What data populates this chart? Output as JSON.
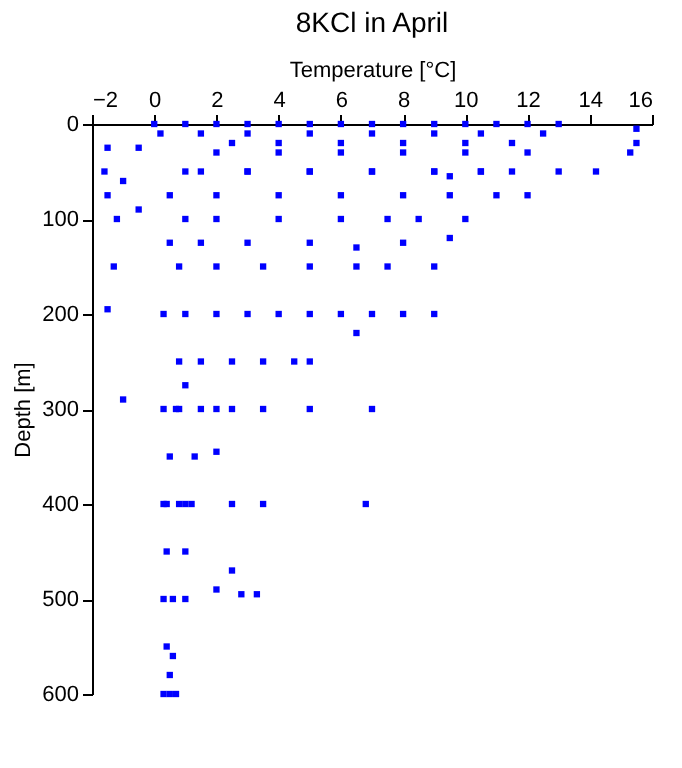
{
  "chart_data": {
    "type": "scatter",
    "title": "8KCl in April",
    "xlabel": "Temperature [°C]",
    "ylabel": "Depth [m]",
    "marker": "square",
    "grid": false,
    "xlim": [
      -2,
      16
    ],
    "xticks": [
      -2,
      0,
      2,
      4,
      6,
      8,
      10,
      12,
      14,
      16
    ],
    "ylim": [
      600,
      0
    ],
    "yticks": [
      0,
      100,
      200,
      300,
      400,
      500,
      600
    ],
    "x": [
      0,
      1,
      2,
      3,
      4,
      5,
      6,
      7,
      8,
      9,
      10,
      11,
      12,
      13,
      0.2,
      1.5,
      3,
      5,
      7,
      9,
      10.5,
      12.5,
      15.5,
      2.5,
      4,
      6,
      8,
      10,
      11.5,
      15.5,
      15.3,
      -1.5,
      -0.5,
      2,
      4,
      6,
      8,
      10,
      12,
      1.5,
      3,
      5,
      7,
      9,
      10.5,
      11.5,
      14.2,
      -1.6,
      -1,
      1,
      3,
      5,
      7,
      9,
      9.5,
      10.5,
      13,
      -1.5,
      -0.5,
      0.5,
      2,
      4,
      6,
      8,
      9.5,
      11,
      12,
      -1.2,
      1,
      2,
      4,
      6,
      7.5,
      8.5,
      10,
      0.5,
      1.5,
      3,
      5,
      6.5,
      8,
      9.5,
      -1.3,
      0.8,
      2,
      3.5,
      5,
      6.5,
      7.5,
      9,
      -1.5,
      0.3,
      1,
      2,
      3,
      4,
      5,
      6,
      7,
      8,
      9,
      6.5,
      0.8,
      1.5,
      2.5,
      3.5,
      4.5,
      5,
      1,
      0.7,
      1.5,
      2.5,
      -1,
      0.3,
      0.8,
      2,
      3.5,
      5,
      7,
      0.5,
      1.3,
      2,
      0.4,
      1,
      0.3,
      0.8,
      1.2,
      2.5,
      3.5,
      6.8,
      0.4,
      1,
      2.5,
      0.3,
      0.6,
      1,
      2,
      2.8,
      3.3,
      0.4,
      0.6,
      0.5,
      0.3,
      0.7,
      0.5
    ],
    "series": [
      {
        "color": "#0000ff",
        "values": [
          0,
          0,
          0,
          0,
          0,
          0,
          0,
          0,
          0,
          0,
          0,
          0,
          0,
          0,
          10,
          10,
          10,
          10,
          10,
          10,
          10,
          10,
          5,
          20,
          20,
          20,
          20,
          20,
          20,
          20,
          30,
          25,
          25,
          30,
          30,
          30,
          30,
          30,
          30,
          50,
          50,
          50,
          50,
          50,
          50,
          50,
          50,
          50,
          60,
          50,
          50,
          50,
          50,
          50,
          55,
          50,
          50,
          75,
          90,
          75,
          75,
          75,
          75,
          75,
          75,
          75,
          75,
          100,
          100,
          100,
          100,
          100,
          100,
          100,
          100,
          125,
          125,
          125,
          125,
          130,
          125,
          120,
          150,
          150,
          150,
          150,
          150,
          150,
          150,
          150,
          195,
          200,
          200,
          200,
          200,
          200,
          200,
          200,
          200,
          200,
          200,
          220,
          250,
          250,
          250,
          250,
          250,
          250,
          275,
          300,
          300,
          300,
          290,
          300,
          300,
          300,
          300,
          300,
          300,
          350,
          350,
          345,
          400,
          400,
          400,
          400,
          400,
          400,
          400,
          400,
          450,
          450,
          470,
          500,
          500,
          500,
          490,
          495,
          495,
          550,
          560,
          600,
          600,
          600,
          580
        ]
      }
    ]
  }
}
